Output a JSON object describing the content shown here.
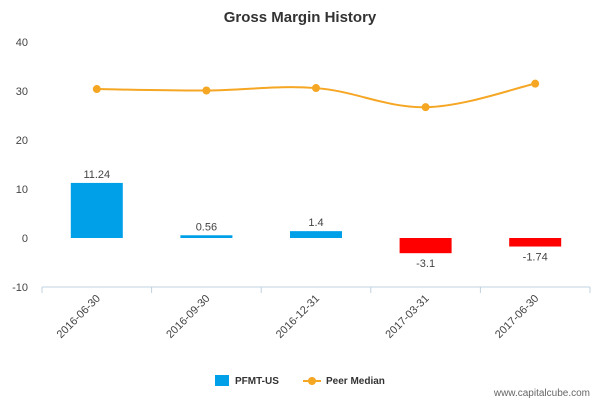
{
  "chart_data": {
    "type": "bar",
    "title": "Gross Margin History",
    "categories": [
      "2016-06-30",
      "2016-09-30",
      "2016-12-31",
      "2017-03-31",
      "2017-06-30"
    ],
    "series": [
      {
        "name": "PFMT-US",
        "kind": "bar",
        "values": [
          11.24,
          0.56,
          1.4,
          -3.1,
          -1.74
        ],
        "labels": [
          "11.24",
          "0.56",
          "1.4",
          "-3.1",
          "-1.74"
        ],
        "color_positive": "#00a0e9",
        "color_negative": "#ff0000"
      },
      {
        "name": "Peer Median",
        "kind": "line",
        "values": [
          30.4,
          30.1,
          30.6,
          26.7,
          31.5
        ],
        "color": "#f5a623"
      }
    ],
    "ylim": [
      -10,
      40
    ],
    "yticks": [
      -10,
      0,
      10,
      20,
      30,
      40
    ],
    "xlabel": "",
    "ylabel": "",
    "grid": false,
    "legend_position": "bottom-center"
  },
  "watermark": "www.capitalcube.com"
}
